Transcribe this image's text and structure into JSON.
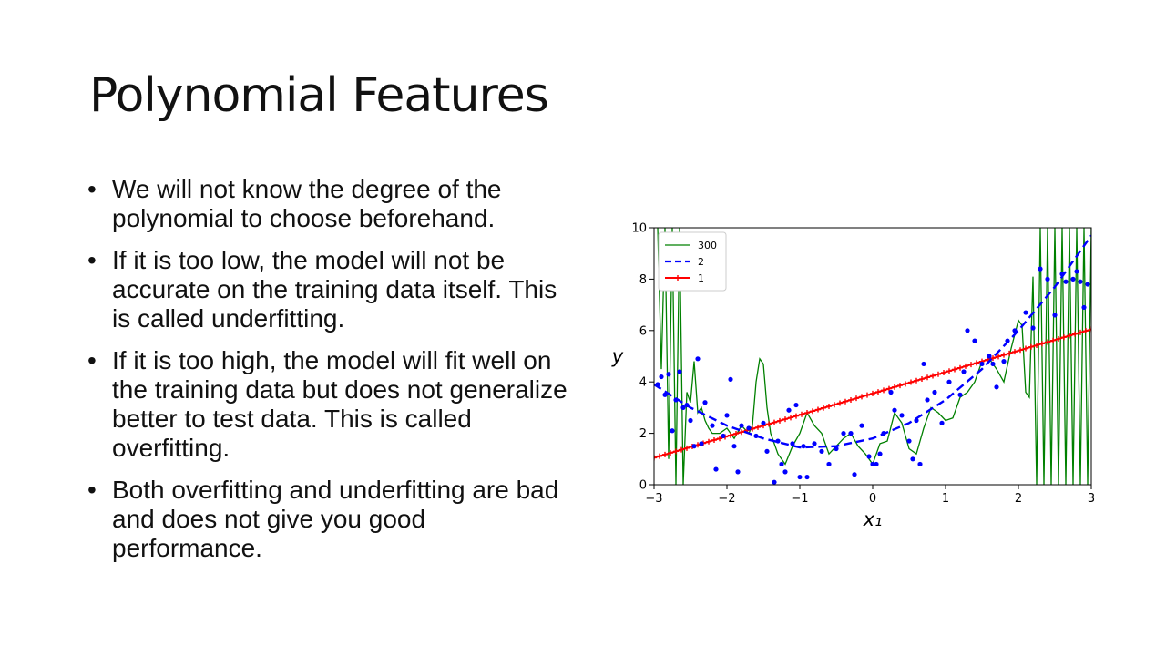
{
  "slide": {
    "title": "Polynomial Features",
    "bullets": [
      "We will not know the degree of the polynomial to choose beforehand.",
      "If it is too low, the model will not be accurate on the training data itself. This is called underfitting.",
      "If it is too high, the model will fit well on the training data but does not generalize better to test data. This is called overfitting.",
      "Both overfitting and underfitting are bad and does not give you good performance."
    ],
    "bullet_char": "•"
  },
  "chart_data": {
    "type": "scatter",
    "xlabel": "x₁",
    "ylabel": "y",
    "xlim": [
      -3,
      3
    ],
    "ylim": [
      0,
      10
    ],
    "xticks": [
      -3,
      -2,
      -1,
      0,
      1,
      2,
      3
    ],
    "xtick_labels": [
      "−3",
      "−2",
      "−1",
      "0",
      "1",
      "2",
      "3"
    ],
    "yticks": [
      0,
      2,
      4,
      6,
      8,
      10
    ],
    "ytick_labels": [
      "0",
      "2",
      "4",
      "6",
      "8",
      "10"
    ],
    "grid": false,
    "legend_position": "top-left",
    "points": {
      "color": "#0000ff",
      "x": [
        -2.95,
        -2.9,
        -2.85,
        -2.8,
        -2.75,
        -2.7,
        -2.65,
        -2.6,
        -2.55,
        -2.5,
        -2.45,
        -2.4,
        -2.35,
        -2.3,
        -2.2,
        -2.15,
        -2.05,
        -2.0,
        -1.95,
        -1.9,
        -1.85,
        -1.8,
        -1.7,
        -1.6,
        -1.5,
        -1.45,
        -1.35,
        -1.3,
        -1.25,
        -1.2,
        -1.15,
        -1.1,
        -1.05,
        -1.0,
        -0.95,
        -0.9,
        -0.8,
        -0.7,
        -0.6,
        -0.5,
        -0.4,
        -0.3,
        -0.25,
        -0.15,
        -0.05,
        0.0,
        0.05,
        0.1,
        0.15,
        0.25,
        0.3,
        0.4,
        0.5,
        0.55,
        0.6,
        0.65,
        0.7,
        0.75,
        0.85,
        0.95,
        1.05,
        1.2,
        1.25,
        1.3,
        1.4,
        1.5,
        1.6,
        1.65,
        1.7,
        1.8,
        1.85,
        1.95,
        2.1,
        2.2,
        2.3,
        2.4,
        2.5,
        2.6,
        2.65,
        2.75,
        2.8,
        2.85,
        2.9,
        2.95
      ],
      "y": [
        3.9,
        4.2,
        3.5,
        4.3,
        2.1,
        3.3,
        4.4,
        3.0,
        3.1,
        2.5,
        1.5,
        4.9,
        1.6,
        3.2,
        2.3,
        0.6,
        1.9,
        2.7,
        4.1,
        1.5,
        0.5,
        2.3,
        2.2,
        1.9,
        2.4,
        1.3,
        0.1,
        1.7,
        0.8,
        0.5,
        2.9,
        1.6,
        3.1,
        0.3,
        1.5,
        0.3,
        1.6,
        1.3,
        0.8,
        1.4,
        2.0,
        2.0,
        0.4,
        2.3,
        1.1,
        0.8,
        0.8,
        1.2,
        2.0,
        3.6,
        2.9,
        2.7,
        1.7,
        1.0,
        2.5,
        0.8,
        4.7,
        3.3,
        3.6,
        2.4,
        4.0,
        3.5,
        4.4,
        6.0,
        5.6,
        4.7,
        5.0,
        4.7,
        3.8,
        4.8,
        5.6,
        6.0,
        6.7,
        6.1,
        8.4,
        8.0,
        6.6,
        8.2,
        7.9,
        8.0,
        8.3,
        7.9,
        6.9,
        7.8
      ]
    },
    "series": [
      {
        "name": "300",
        "color": "#008000",
        "style": "solid",
        "x": [
          -2.95,
          -2.9,
          -2.85,
          -2.8,
          -2.75,
          -2.7,
          -2.65,
          -2.6,
          -2.55,
          -2.5,
          -2.45,
          -2.4,
          -2.35,
          -2.3,
          -2.25,
          -2.2,
          -2.1,
          -2.0,
          -1.9,
          -1.8,
          -1.7,
          -1.65,
          -1.6,
          -1.55,
          -1.5,
          -1.45,
          -1.4,
          -1.3,
          -1.2,
          -1.1,
          -1.0,
          -0.9,
          -0.8,
          -0.7,
          -0.6,
          -0.5,
          -0.4,
          -0.3,
          -0.2,
          -0.1,
          0.0,
          0.1,
          0.2,
          0.3,
          0.4,
          0.5,
          0.6,
          0.7,
          0.8,
          0.9,
          1.0,
          1.1,
          1.2,
          1.3,
          1.4,
          1.5,
          1.6,
          1.7,
          1.8,
          1.9,
          2.0,
          2.05,
          2.1,
          2.15,
          2.2,
          2.25,
          2.3,
          2.35,
          2.4,
          2.45,
          2.5,
          2.55,
          2.6,
          2.65,
          2.7,
          2.75,
          2.8,
          2.85,
          2.9,
          2.95,
          3.0
        ],
        "y": [
          10,
          4.5,
          10,
          1,
          10,
          0,
          10,
          0,
          3.6,
          3.2,
          4.8,
          2.8,
          3.0,
          2.5,
          2.2,
          2.0,
          2.0,
          2.2,
          1.8,
          2.3,
          2.0,
          2.3,
          4.0,
          4.9,
          4.7,
          3.0,
          2.0,
          1.2,
          0.8,
          1.5,
          2.0,
          2.8,
          2.3,
          2.0,
          1.2,
          1.5,
          1.8,
          2.0,
          1.5,
          1.2,
          0.8,
          1.6,
          1.7,
          2.8,
          2.4,
          1.4,
          1.2,
          2.2,
          3.0,
          2.8,
          2.5,
          2.6,
          3.4,
          3.6,
          4.0,
          4.8,
          4.9,
          4.5,
          4.0,
          5.3,
          6.4,
          6.2,
          3.6,
          3.4,
          8.1,
          0,
          10,
          0,
          10,
          0,
          10,
          0,
          10,
          0,
          10,
          0,
          10,
          0,
          10,
          0,
          10
        ]
      },
      {
        "name": "2",
        "color": "#0000ff",
        "style": "dashed",
        "x": [
          -3.0,
          -2.5,
          -2.0,
          -1.5,
          -1.0,
          -0.5,
          0.0,
          0.5,
          1.0,
          1.5,
          2.0,
          2.5,
          3.0
        ],
        "y": [
          3.9,
          3.0,
          2.3,
          1.8,
          1.45,
          1.5,
          1.8,
          2.4,
          3.3,
          4.5,
          6.0,
          7.7,
          9.7
        ]
      },
      {
        "name": "1",
        "color": "#ff0000",
        "style": "solid-plus",
        "x": [
          -3.0,
          3.0
        ],
        "y": [
          1.05,
          6.05
        ]
      }
    ]
  }
}
